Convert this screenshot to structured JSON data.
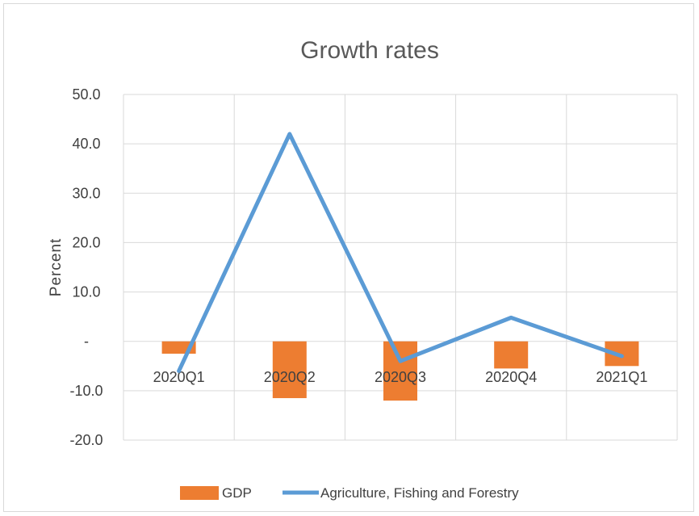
{
  "chart_data": {
    "type": "bar",
    "title": "Growth rates",
    "xlabel": "",
    "ylabel": "Percent",
    "categories": [
      "2020Q1",
      "2020Q2",
      "2020Q3",
      "2020Q4",
      "2021Q1"
    ],
    "ylim": [
      -20,
      50
    ],
    "yticks": [
      -20,
      -10,
      0,
      10,
      20,
      30,
      40,
      50
    ],
    "ytick_labels": [
      "-20.0",
      "-10.0",
      "-",
      "10.0",
      "20.0",
      "30.0",
      "40.0",
      "50.0"
    ],
    "grid": true,
    "legend_position": "bottom",
    "series": [
      {
        "name": "GDP",
        "type": "bar",
        "color": "#ed7d31",
        "values": [
          -2.5,
          -11.5,
          -12.0,
          -5.5,
          -5.0
        ]
      },
      {
        "name": "Agriculture, Fishing and Forestry",
        "type": "line",
        "color": "#5b9bd5",
        "values": [
          -6.0,
          42.0,
          -4.0,
          4.8,
          -3.0
        ]
      }
    ]
  }
}
